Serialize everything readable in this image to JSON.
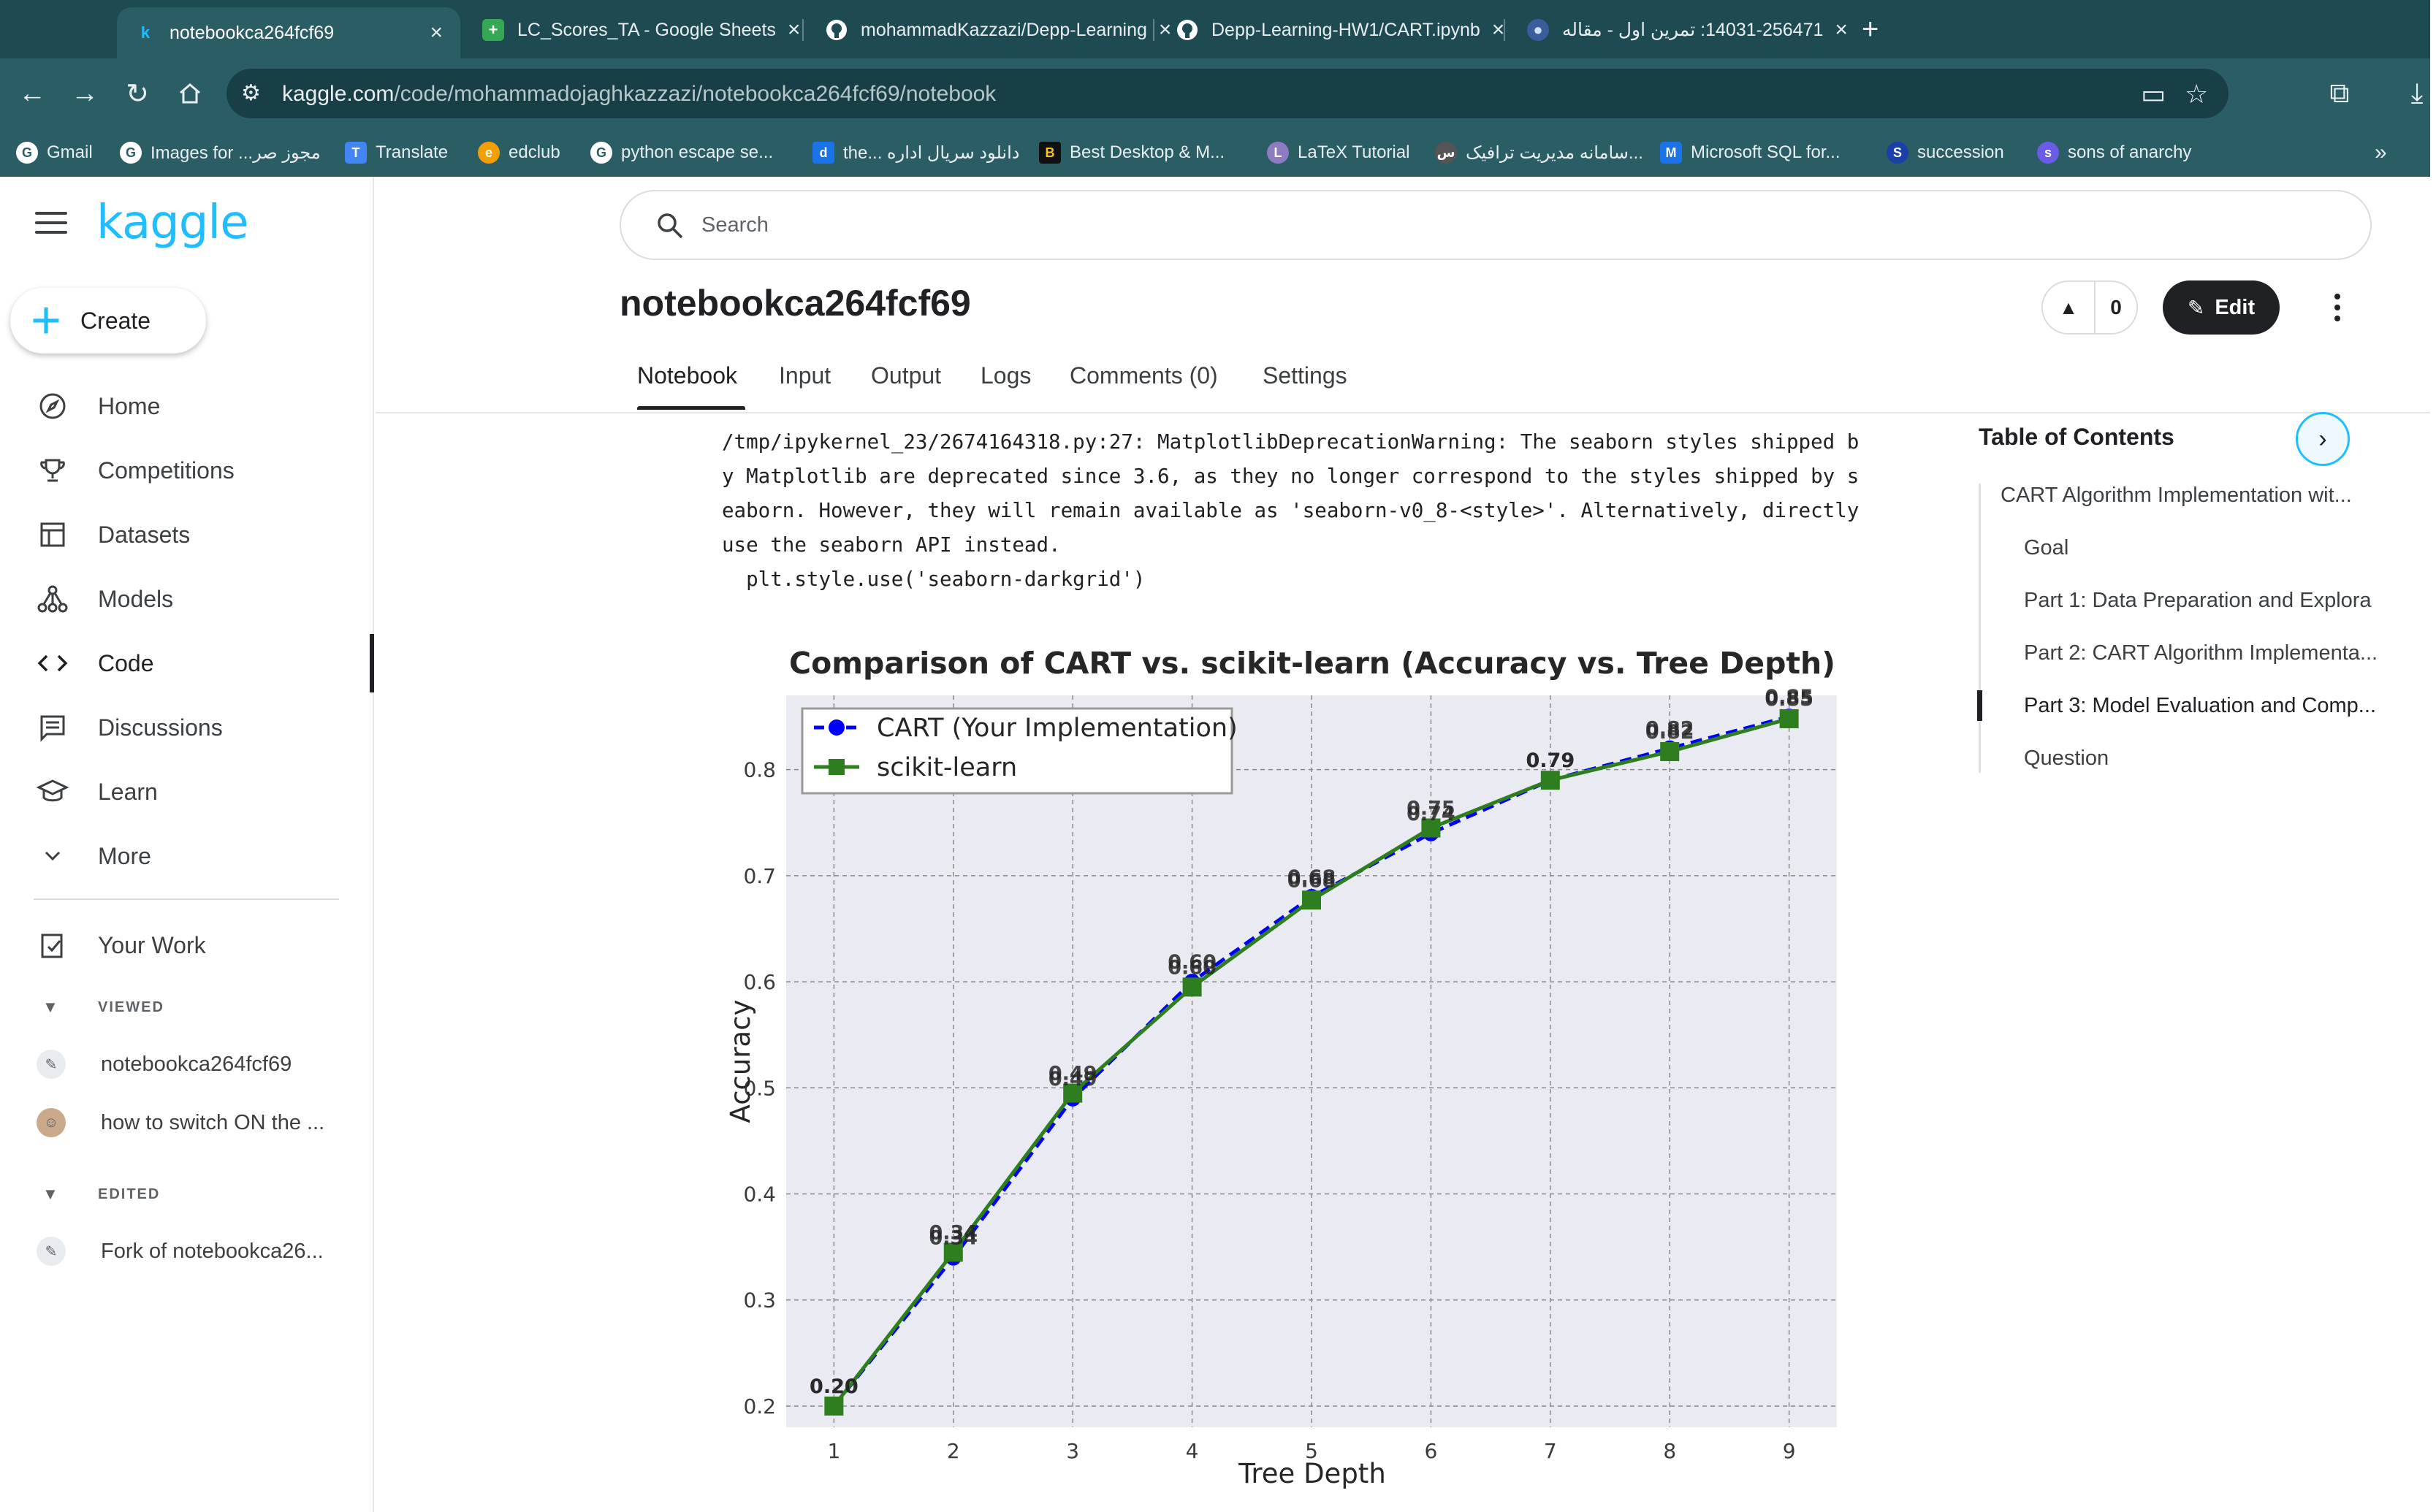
{
  "browser": {
    "tabs": [
      {
        "label": "notebookca264fcf69",
        "favicon": "k",
        "favicon_color": "#20beff",
        "active": true
      },
      {
        "label": "LC_Scores_TA - Google Sheets",
        "favicon": "+",
        "favicon_color": "#34a853",
        "active": false
      },
      {
        "label": "mohammadKazzazi/Depp-Learning",
        "favicon": "github",
        "favicon_color": "#ffffff",
        "active": false
      },
      {
        "label": "Depp-Learning-HW1/CART.ipynb",
        "favicon": "github",
        "favicon_color": "#ffffff",
        "active": false
      },
      {
        "label": "14031-256471: تمرین اول - مقاله",
        "favicon": "globe",
        "favicon_color": "#8ab4f8",
        "active": false
      }
    ],
    "url_host": "kaggle.com",
    "url_path": "/code/mohammadojaghkazzazi/notebookca264fcf69/notebook",
    "bookmarks": [
      {
        "label": "Gmail",
        "icon": "G"
      },
      {
        "label": "Images for ...مجوز صر",
        "icon": "G"
      },
      {
        "label": "Translate",
        "icon": "T"
      },
      {
        "label": "edclub",
        "icon": "e"
      },
      {
        "label": "python escape se...",
        "icon": "G"
      },
      {
        "label": "the... دانلود سریال اداره",
        "icon": "d"
      },
      {
        "label": "Best Desktop & M...",
        "icon": "B"
      },
      {
        "label": "LaTeX Tutorial",
        "icon": "L"
      },
      {
        "label": "سامانه مدیریت ترافیک...",
        "icon": "س"
      },
      {
        "label": "Microsoft SQL for...",
        "icon": "M"
      },
      {
        "label": "succession",
        "icon": "S"
      },
      {
        "label": "sons of anarchy",
        "icon": "s"
      }
    ]
  },
  "sidebar": {
    "logo": "kaggle",
    "create_label": "Create",
    "nav": [
      {
        "label": "Home",
        "icon": "compass-icon"
      },
      {
        "label": "Competitions",
        "icon": "trophy-icon"
      },
      {
        "label": "Datasets",
        "icon": "table-icon"
      },
      {
        "label": "Models",
        "icon": "models-icon"
      },
      {
        "label": "Code",
        "icon": "code-icon"
      },
      {
        "label": "Discussions",
        "icon": "discussions-icon"
      },
      {
        "label": "Learn",
        "icon": "learn-icon"
      },
      {
        "label": "More",
        "icon": "chevron-down-icon"
      }
    ],
    "your_work": "Your Work",
    "viewed_label": "VIEWED",
    "viewed": [
      "notebookca264fcf69",
      "how to switch ON the ..."
    ],
    "edited_label": "EDITED",
    "edited": [
      "Fork of notebookca26..."
    ]
  },
  "header": {
    "search_placeholder": "Search",
    "title": "notebookca264fcf69",
    "votes": "0",
    "edit_label": "Edit",
    "tabs": [
      "Notebook",
      "Input",
      "Output",
      "Logs",
      "Comments (0)",
      "Settings"
    ]
  },
  "output": {
    "stderr_lines": [
      "/tmp/ipykernel_23/2674164318.py:27: MatplotlibDeprecationWarning: The seaborn styles shipped b",
      "y Matplotlib are deprecated since 3.6, as they no longer correspond to the styles shipped by s",
      "eaborn. However, they will remain available as 'seaborn-v0_8-<style>'. Alternatively, directly",
      "use the seaborn API instead.",
      "  plt.style.use('seaborn-darkgrid')"
    ]
  },
  "toc": {
    "title": "Table of Contents",
    "items": [
      "CART Algorithm Implementation wit...",
      "Goal",
      "Part 1: Data Preparation and Explora",
      "Part 2: CART Algorithm Implementa...",
      "Part 3: Model Evaluation and Comp...",
      "Question"
    ]
  },
  "colors": {
    "kaggle_blue": "#20beff",
    "chrome_dark": "#1e4b52",
    "chrome": "#2a5d64",
    "series_cart": "#0000ff",
    "series_sklearn": "#2e7d1f",
    "plot_bg": "#eaeaf2"
  },
  "chart_data": {
    "type": "line",
    "title": "Comparison of CART vs. scikit-learn (Accuracy vs. Tree Depth)",
    "xlabel": "Tree Depth",
    "ylabel": "Accuracy",
    "x": [
      1,
      2,
      3,
      4,
      5,
      6,
      7,
      8,
      9
    ],
    "xlim": [
      0.6,
      9.4
    ],
    "ylim": [
      0.18,
      0.87
    ],
    "yticks": [
      0.2,
      0.3,
      0.4,
      0.5,
      0.6,
      0.7,
      0.8
    ],
    "grid": true,
    "legend_position": "top-left",
    "series": [
      {
        "name": "CART (Your Implementation)",
        "values": [
          0.2,
          0.34,
          0.49,
          0.6,
          0.68,
          0.74,
          0.79,
          0.82,
          0.85
        ],
        "color": "#0000ff",
        "marker": "circle",
        "linestyle": "dashed"
      },
      {
        "name": "scikit-learn",
        "values": [
          0.2,
          0.345,
          0.495,
          0.595,
          0.677,
          0.745,
          0.79,
          0.817,
          0.848
        ],
        "color": "#2e7d1f",
        "marker": "square",
        "linestyle": "solid"
      }
    ],
    "data_labels": [
      "0.20",
      "0.34",
      "0.49",
      "0.60",
      "0.68",
      "0.74",
      "0.79",
      "0.82",
      "0.85"
    ],
    "data_labels_overlay": [
      "0.20",
      "0.34",
      "0.49",
      "0.60",
      "0.68",
      "0.75",
      "0.79",
      "0.82",
      "0.85"
    ]
  }
}
